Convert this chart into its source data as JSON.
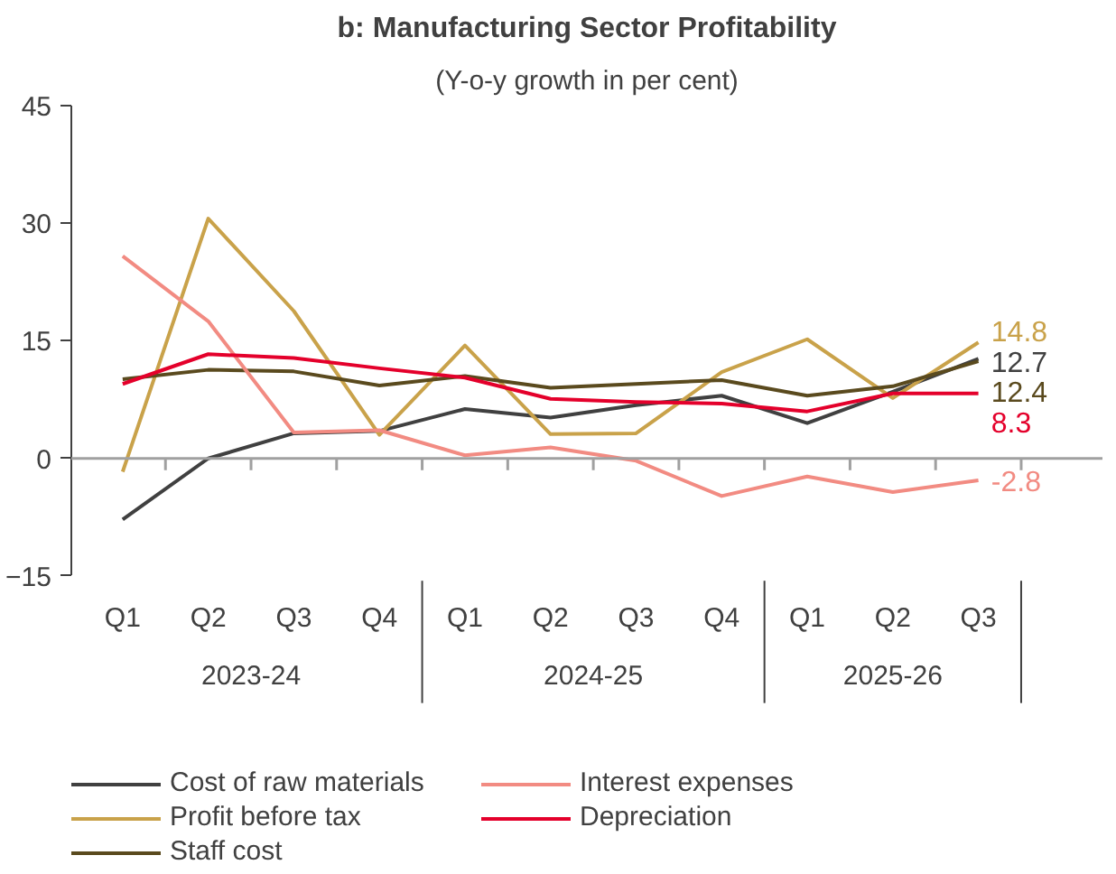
{
  "chart_data": {
    "type": "line",
    "title": "b: Manufacturing Sector Profitability",
    "subtitle": "(Y-o-y growth in per cent)",
    "categories": [
      "Q1",
      "Q2",
      "Q3",
      "Q4",
      "Q1",
      "Q2",
      "Q3",
      "Q4",
      "Q1",
      "Q2",
      "Q3"
    ],
    "annotations": [
      "2023-24",
      "2024-25",
      "2025-26"
    ],
    "ref_lines": [
      {
        "axis": "y",
        "value": 0,
        "color": "#a0a0a0"
      }
    ],
    "ylim": [
      -15,
      45
    ],
    "yticks": [
      -15,
      0,
      15,
      30,
      45
    ],
    "grid": false,
    "legend": "bottom",
    "marker": "none",
    "line_style": "solid",
    "series": [
      {
        "name": "Cost of raw materials",
        "color": "#404040",
        "values": [
          -7.8,
          0,
          3.2,
          3.5,
          6.3,
          5.2,
          6.8,
          8.0,
          4.5,
          8.5,
          12.7
        ],
        "value_labels": [
          null,
          null,
          null,
          null,
          null,
          null,
          null,
          null,
          null,
          null,
          "12.7"
        ]
      },
      {
        "name": "Profit before tax",
        "color": "#c9a24a",
        "values": [
          -1.7,
          30.6,
          18.8,
          3.0,
          14.4,
          3.1,
          3.2,
          11.0,
          15.2,
          7.7,
          14.8
        ],
        "value_labels": [
          null,
          null,
          null,
          null,
          null,
          null,
          null,
          null,
          null,
          null,
          "14.8"
        ]
      },
      {
        "name": "Staff cost",
        "color": "#5a4a1e",
        "values": [
          10.1,
          11.3,
          11.1,
          9.3,
          10.5,
          9.0,
          9.5,
          10.0,
          8.0,
          9.2,
          12.4
        ],
        "value_labels": [
          null,
          null,
          null,
          null,
          null,
          null,
          null,
          null,
          null,
          null,
          "12.4"
        ]
      },
      {
        "name": "Interest expenses",
        "color": "#f28b82",
        "values": [
          25.8,
          17.5,
          3.3,
          3.6,
          0.4,
          1.4,
          -0.3,
          -4.8,
          -2.3,
          -4.3,
          -2.8
        ],
        "value_labels": [
          null,
          null,
          null,
          null,
          null,
          null,
          null,
          null,
          null,
          null,
          "-2.8"
        ]
      },
      {
        "name": "Depreciation",
        "color": "#e4002b",
        "values": [
          9.5,
          13.3,
          12.8,
          11.5,
          10.3,
          7.6,
          7.2,
          7.0,
          6.0,
          8.3,
          8.3
        ],
        "value_labels": [
          null,
          null,
          null,
          null,
          null,
          null,
          null,
          null,
          null,
          null,
          "8.3"
        ]
      }
    ]
  }
}
